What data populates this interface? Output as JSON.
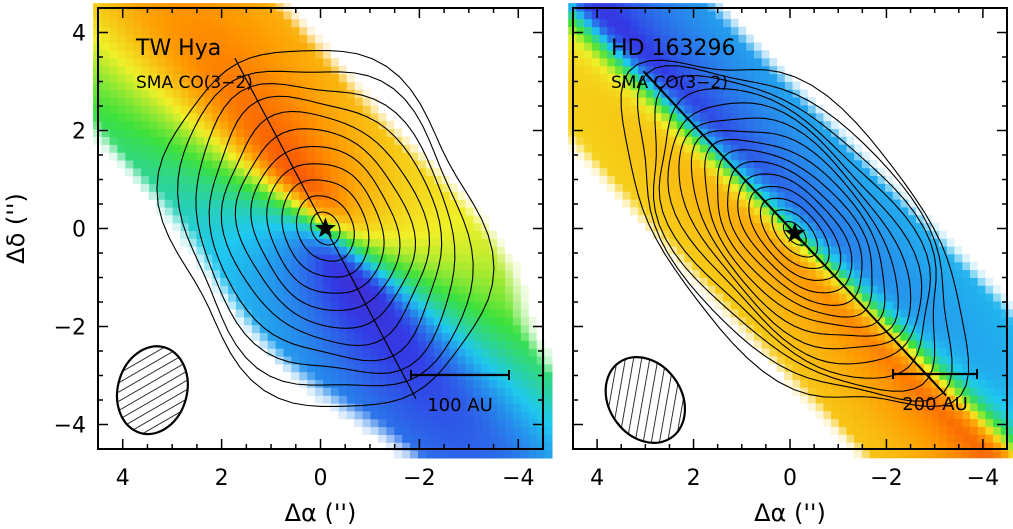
{
  "chart_data": [
    {
      "type": "heatmap",
      "title": "TW Hya",
      "subtitle": "SMA CO(3−2)",
      "xlabel": "Δα ('')",
      "ylabel": "Δδ ('')",
      "xlim": [
        4.5,
        -4.5
      ],
      "ylim": [
        -4.5,
        4.5
      ],
      "x_ticks": [
        "4",
        "2",
        "0",
        "−2",
        "−4"
      ],
      "y_ticks": [
        "4",
        "2",
        "0",
        "−2",
        "−4"
      ],
      "scale_bar": "100 AU",
      "star_position": [
        -0.1,
        0.0
      ],
      "major_axis_pa_deg": 152,
      "contour_levels": 11,
      "beam": {
        "x": 3.4,
        "y": -3.3,
        "fwhm_x": 1.4,
        "fwhm_y": 1.8
      }
    },
    {
      "type": "heatmap",
      "title": "HD 163296",
      "subtitle": "SMA CO(3−2)",
      "xlabel": "Δα ('')",
      "ylabel": "",
      "xlim": [
        4.5,
        -4.5
      ],
      "ylim": [
        -4.5,
        4.5
      ],
      "x_ticks": [
        "4",
        "2",
        "0",
        "−2",
        "−4"
      ],
      "y_ticks": [],
      "scale_bar": "200 AU",
      "star_position": [
        -0.1,
        -0.1
      ],
      "major_axis_pa_deg": 137,
      "contour_levels": 15,
      "beam": {
        "x": 3.0,
        "y": -3.5,
        "fwhm_x": 1.5,
        "fwhm_y": 1.9
      }
    }
  ],
  "colors": {
    "redshifted": "#ff2000",
    "systemic": "#40e030",
    "blueshifted": "#3040f0",
    "contour": "#000000"
  }
}
